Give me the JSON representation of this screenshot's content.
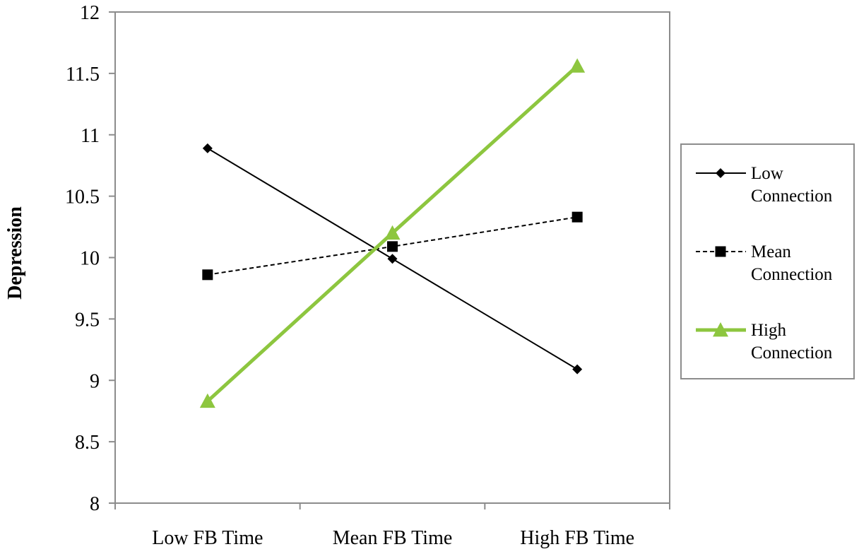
{
  "chart_data": {
    "type": "line",
    "categories": [
      "Low FB Time",
      "Mean FB Time",
      "High FB Time"
    ],
    "ylabel": "Depression",
    "ylim": [
      8,
      12
    ],
    "yticks": [
      "8",
      "8.5",
      "9",
      "9.5",
      "10",
      "10.5",
      "11",
      "11.5",
      "12"
    ],
    "grid": false,
    "legend_position": "right",
    "series": [
      {
        "name_lines": [
          "Low",
          "Connection"
        ],
        "values": [
          10.89,
          9.99,
          9.09
        ],
        "color": "#000000",
        "line_style": "solid",
        "marker": "diamond"
      },
      {
        "name_lines": [
          "Mean",
          "Connection"
        ],
        "values": [
          9.86,
          10.09,
          10.33
        ],
        "color": "#000000",
        "line_style": "dashed",
        "marker": "square"
      },
      {
        "name_lines": [
          "High",
          "Connection"
        ],
        "values": [
          8.83,
          10.2,
          11.56
        ],
        "color": "#8dc63f",
        "line_style": "solid",
        "marker": "triangle"
      }
    ]
  }
}
